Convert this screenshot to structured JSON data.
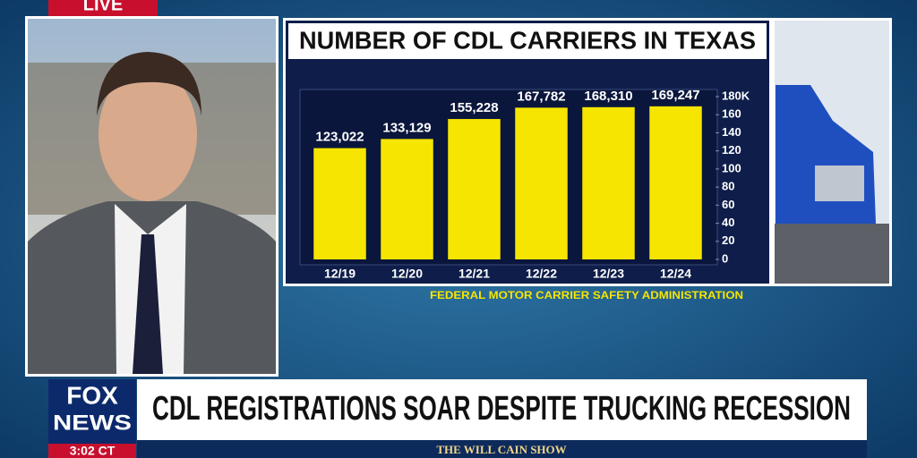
{
  "chart_data": {
    "type": "bar",
    "title": "NUMBER OF CDL CARRIERS IN TEXAS",
    "categories": [
      "12/19",
      "12/20",
      "12/21",
      "12/22",
      "12/23",
      "12/24"
    ],
    "values": [
      123.022,
      133.129,
      155.228,
      167.782,
      168.31,
      169.247
    ],
    "value_labels": [
      "123,022",
      "133,129",
      "155,228",
      "167,782",
      "168,310",
      "169,247"
    ],
    "color": "#f6e500",
    "ylim": [
      0,
      180
    ],
    "yticks": [
      0,
      20,
      40,
      60,
      80,
      100,
      120,
      140,
      160,
      {
        "value": 180,
        "label": "180K"
      }
    ],
    "source": "FEDERAL MOTOR CARRIER SAFETY ADMINISTRATION"
  },
  "broadcast": {
    "live": "LIVE",
    "headline": "CDL REGISTRATIONS SOAR DESPITE TRUCKING RECESSION",
    "logo_top": "FOX",
    "logo_bottom": "NEWS",
    "time": "3:02 CT",
    "show": "THE WILL CAIN SHOW"
  }
}
